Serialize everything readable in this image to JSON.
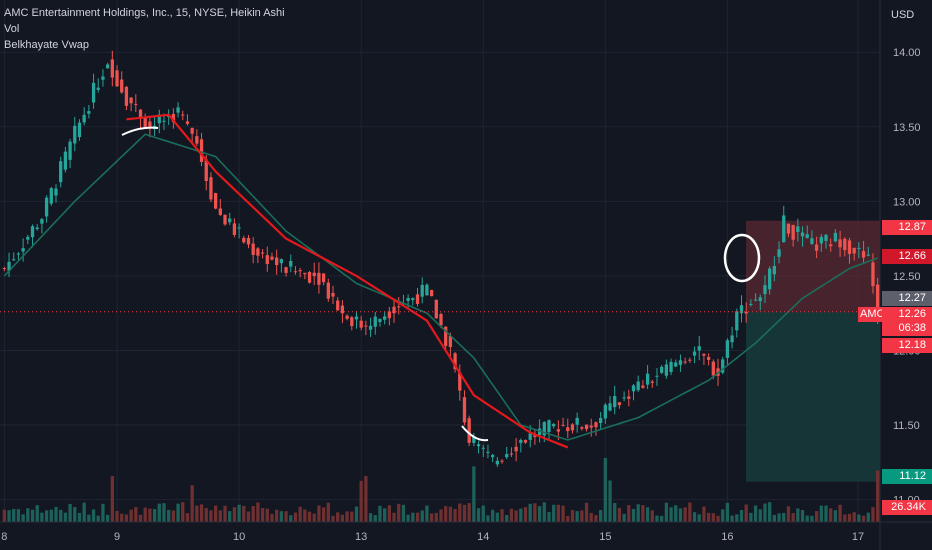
{
  "header": {
    "title": "AMC Entertainment Holdings, Inc., 15, NYSE, Heikin Ashi",
    "indicator_1": "Vol",
    "indicator_2": "Belkhayate Vwap"
  },
  "price_axis": {
    "currency": "USD",
    "ticks": [
      "14.00",
      "13.50",
      "13.00",
      "12.50",
      "12.00",
      "11.50",
      "11.00"
    ]
  },
  "time_axis": {
    "ticks": [
      "8",
      "9",
      "10",
      "13",
      "14",
      "15",
      "16",
      "17"
    ]
  },
  "price_labels": {
    "stop_loss": "12.87",
    "vwap_upper": "12.66",
    "last_close": "12.27",
    "symbol": "AMC",
    "current_price": "12.26",
    "countdown": "06:38",
    "lower_band": "12.18",
    "take_profit": "11.12",
    "volume": "26.34K"
  },
  "colors": {
    "background": "#131722",
    "up": "#26a69a",
    "down": "#ef5350",
    "vwap_line": "#e3191c",
    "ma_line": "#1a6e5a",
    "stop_zone": "#5a2a32",
    "target_zone": "#17393a",
    "grid": "#1f2430"
  },
  "chart_data": {
    "type": "candlestick",
    "chart_style": "Heikin Ashi",
    "interval": "15",
    "symbol": "AMC",
    "exchange": "NYSE",
    "ylim": [
      10.85,
      14.35
    ],
    "x_days": [
      "8",
      "9",
      "10",
      "13",
      "14",
      "15",
      "16",
      "17"
    ],
    "price_anchors": [
      {
        "bar": 0,
        "price": 12.55
      },
      {
        "bar": 8,
        "price": 12.9
      },
      {
        "bar": 15,
        "price": 13.45
      },
      {
        "bar": 22,
        "price": 13.95
      },
      {
        "bar": 26,
        "price": 13.7
      },
      {
        "bar": 31,
        "price": 13.5
      },
      {
        "bar": 37,
        "price": 13.6
      },
      {
        "bar": 41,
        "price": 13.4
      },
      {
        "bar": 45,
        "price": 12.95
      },
      {
        "bar": 52,
        "price": 12.7
      },
      {
        "bar": 60,
        "price": 12.55
      },
      {
        "bar": 67,
        "price": 12.5
      },
      {
        "bar": 72,
        "price": 12.25
      },
      {
        "bar": 77,
        "price": 12.15
      },
      {
        "bar": 83,
        "price": 12.3
      },
      {
        "bar": 90,
        "price": 12.4
      },
      {
        "bar": 95,
        "price": 12.0
      },
      {
        "bar": 99,
        "price": 11.4
      },
      {
        "bar": 104,
        "price": 11.25
      },
      {
        "bar": 110,
        "price": 11.4
      },
      {
        "bar": 118,
        "price": 11.5
      },
      {
        "bar": 125,
        "price": 11.5
      },
      {
        "bar": 132,
        "price": 11.7
      },
      {
        "bar": 140,
        "price": 11.85
      },
      {
        "bar": 147,
        "price": 12.0
      },
      {
        "bar": 152,
        "price": 11.85
      },
      {
        "bar": 156,
        "price": 12.25
      },
      {
        "bar": 162,
        "price": 12.4
      },
      {
        "bar": 166,
        "price": 12.85
      },
      {
        "bar": 172,
        "price": 12.7
      },
      {
        "bar": 178,
        "price": 12.75
      },
      {
        "bar": 184,
        "price": 12.6
      },
      {
        "bar": 186,
        "price": 12.26
      }
    ],
    "vwap_points": [
      {
        "bar": 26,
        "price": 13.55
      },
      {
        "bar": 35,
        "price": 13.58
      },
      {
        "bar": 45,
        "price": 13.2
      },
      {
        "bar": 60,
        "price": 12.75
      },
      {
        "bar": 75,
        "price": 12.5
      },
      {
        "bar": 90,
        "price": 12.2
      },
      {
        "bar": 100,
        "price": 11.7
      },
      {
        "bar": 112,
        "price": 11.45
      },
      {
        "bar": 120,
        "price": 11.35
      }
    ],
    "ma_points": [
      {
        "bar": 0,
        "price": 12.5
      },
      {
        "bar": 15,
        "price": 13.0
      },
      {
        "bar": 30,
        "price": 13.45
      },
      {
        "bar": 45,
        "price": 13.3
      },
      {
        "bar": 60,
        "price": 12.8
      },
      {
        "bar": 75,
        "price": 12.45
      },
      {
        "bar": 90,
        "price": 12.25
      },
      {
        "bar": 100,
        "price": 11.95
      },
      {
        "bar": 110,
        "price": 11.5
      },
      {
        "bar": 120,
        "price": 11.4
      },
      {
        "bar": 135,
        "price": 11.55
      },
      {
        "bar": 150,
        "price": 11.8
      },
      {
        "bar": 160,
        "price": 12.05
      },
      {
        "bar": 170,
        "price": 12.35
      },
      {
        "bar": 180,
        "price": 12.55
      },
      {
        "bar": 186,
        "price": 12.62
      }
    ],
    "position": {
      "type": "short",
      "entry": 12.26,
      "stop": 12.87,
      "target": 11.12
    },
    "total_bars": 187
  }
}
